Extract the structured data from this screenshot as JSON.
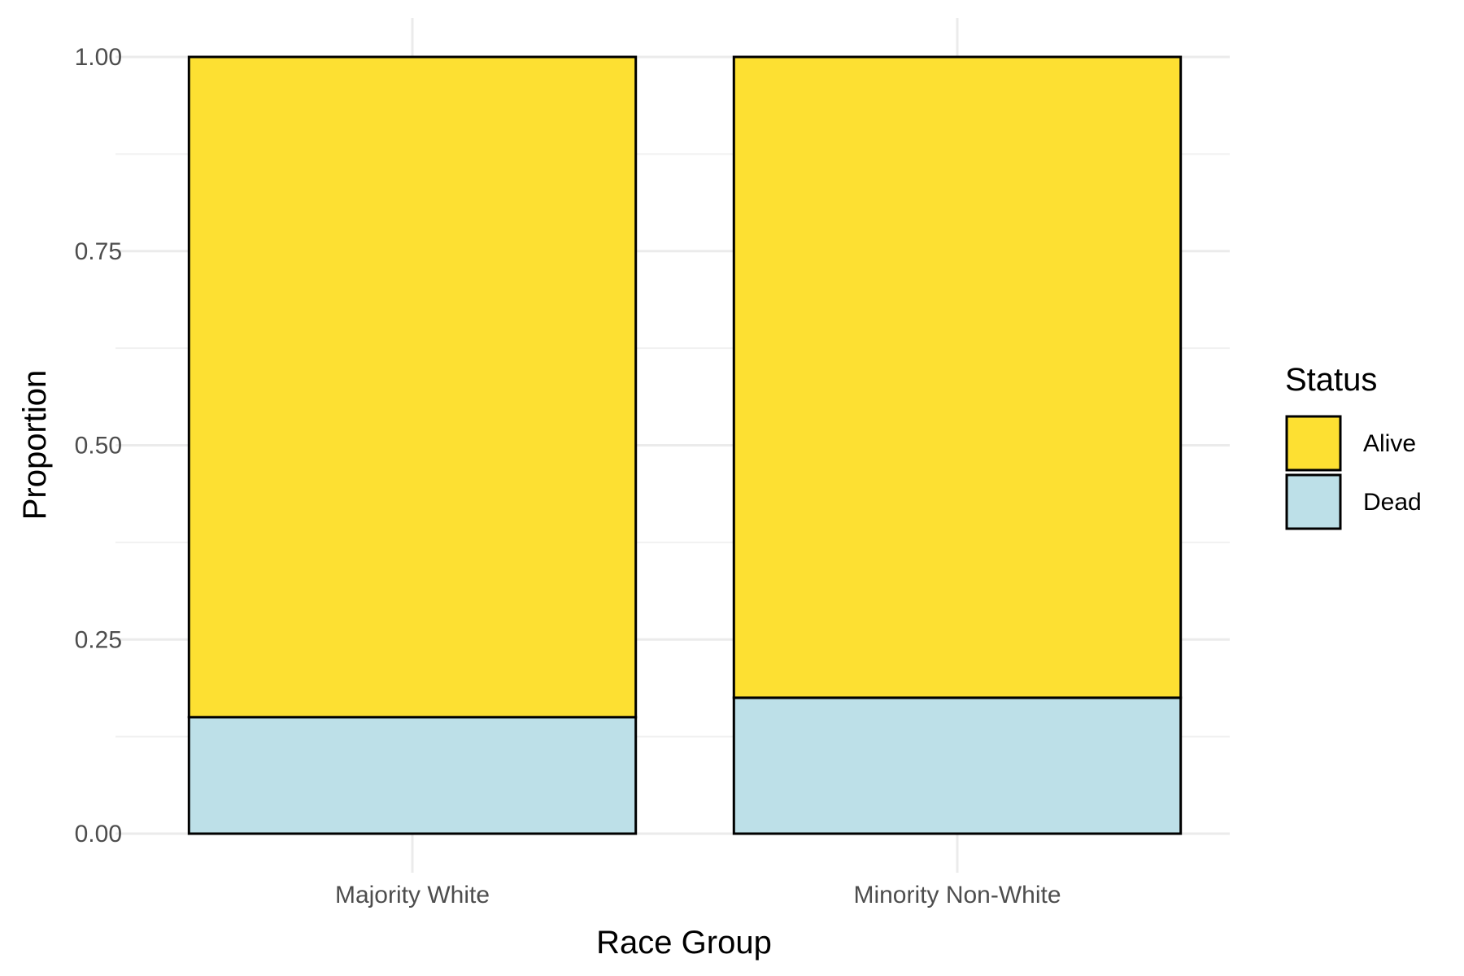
{
  "chart_data": {
    "type": "bar",
    "stacked": true,
    "xlabel": "Race Group",
    "ylabel": "Proportion",
    "categories": [
      "Majority White",
      "Minority Non-White"
    ],
    "series": [
      {
        "name": "Dead",
        "values": [
          0.15,
          0.175
        ],
        "color": "#bde0e8"
      },
      {
        "name": "Alive",
        "values": [
          0.85,
          0.825
        ],
        "color": "#fde032"
      }
    ],
    "ylim": [
      0,
      1
    ],
    "yticks": [
      "0.00",
      "0.25",
      "0.50",
      "0.75",
      "1.00"
    ],
    "grid": true,
    "legend": {
      "title": "Status",
      "position": "right",
      "order": [
        "Alive",
        "Dead"
      ]
    }
  }
}
